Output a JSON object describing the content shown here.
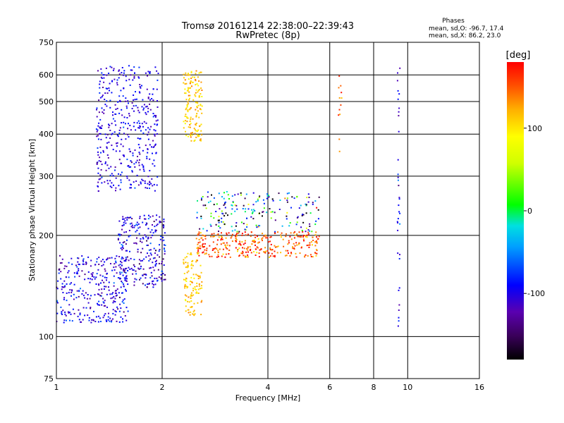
{
  "header": {
    "title": "Tromsø 20161214 22:38:00–22:39:43",
    "subtitle": "RwPretec (8p)"
  },
  "phase_info": {
    "title": "Phases",
    "line_o": "mean, sd,O: -96.7, 17.4",
    "line_x": "mean, sd,X: 86.2, 23.0"
  },
  "colorbar": {
    "label": "[deg]",
    "range": [
      -180,
      180
    ],
    "ticks": [
      "100",
      "0",
      "-100"
    ],
    "tick_values": [
      100,
      0,
      -100
    ]
  },
  "chart_data": {
    "type": "scatter",
    "xlabel": "Frequency [MHz]",
    "ylabel": "Stationary phase Virtual Height [km]",
    "xscale": "log",
    "yscale": "log",
    "xlim": [
      1,
      16
    ],
    "ylim": [
      75,
      750
    ],
    "xticks": [
      "1",
      "2",
      "4",
      "6",
      "8",
      "10",
      "16"
    ],
    "xtick_values": [
      1,
      2,
      4,
      6,
      8,
      10,
      16
    ],
    "yticks": [
      "750",
      "600",
      "500",
      "400",
      "300",
      "200",
      "100",
      "75"
    ],
    "ytick_values": [
      750,
      600,
      500,
      400,
      300,
      200,
      100,
      75
    ],
    "grid": true,
    "color_by": "phase [deg]",
    "point_clusters": [
      {
        "x_range": [
          1.0,
          1.6
        ],
        "y_range": [
          110,
          175
        ],
        "phase_mean": -100,
        "phase_sd": 20,
        "count": 320
      },
      {
        "x_range": [
          1.5,
          2.05
        ],
        "y_range": [
          140,
          230
        ],
        "phase_mean": -105,
        "phase_sd": 25,
        "count": 260
      },
      {
        "x_range": [
          1.3,
          1.95
        ],
        "y_range": [
          270,
          640
        ],
        "phase_mean": -100,
        "phase_sd": 15,
        "count": 420
      },
      {
        "x_range": [
          2.3,
          2.6
        ],
        "y_range": [
          380,
          620
        ],
        "phase_mean": 115,
        "phase_sd": 15,
        "count": 150
      },
      {
        "x_range": [
          2.3,
          2.6
        ],
        "y_range": [
          115,
          180
        ],
        "phase_mean": 110,
        "phase_sd": 15,
        "count": 110
      },
      {
        "x_range": [
          2.5,
          5.6
        ],
        "y_range": [
          172,
          205
        ],
        "phase_mean": 150,
        "phase_sd": 25,
        "count": 320
      },
      {
        "x_range": [
          2.5,
          5.6
        ],
        "y_range": [
          205,
          270
        ],
        "phase_mean": -60,
        "phase_sd": 90,
        "count": 200
      },
      {
        "x_range": [
          6.35,
          6.5
        ],
        "y_range": [
          300,
          620
        ],
        "phase_mean": 150,
        "phase_sd": 20,
        "count": 12
      },
      {
        "x_range": [
          9.35,
          9.5
        ],
        "y_range": [
          105,
          640
        ],
        "phase_mean": -100,
        "phase_sd": 20,
        "count": 35
      }
    ]
  }
}
